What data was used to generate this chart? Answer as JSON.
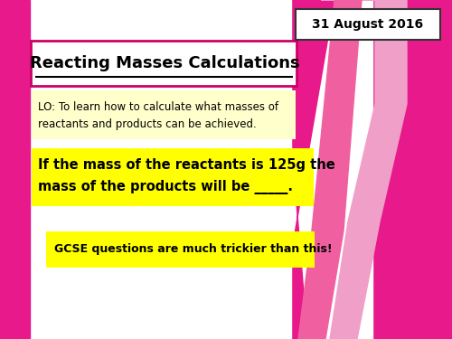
{
  "bg_color": "#ffffff",
  "pink_bg": "#e8198b",
  "date_text": "31 August 2016",
  "title_text": "Reacting Masses Calculations",
  "title_box_color": "#ffffff",
  "title_box_edge": "#cc0066",
  "lo_box_color": "#ffffcc",
  "lo_text_line1": "LO: To learn how to calculate what masses of",
  "lo_text_line2": "reactants and products can be achieved.",
  "yellow_box1_color": "#ffff00",
  "yellow_text_line1": "If the mass of the reactants is 125g the",
  "yellow_text_line2": "mass of the products will be _____.",
  "yellow_box2_color": "#ffff00",
  "gcse_text": "GCSE questions are much trickier than this!",
  "date_box_edge": "#333333",
  "light_pink": "#f0a0c8",
  "mid_pink": "#f060a0"
}
